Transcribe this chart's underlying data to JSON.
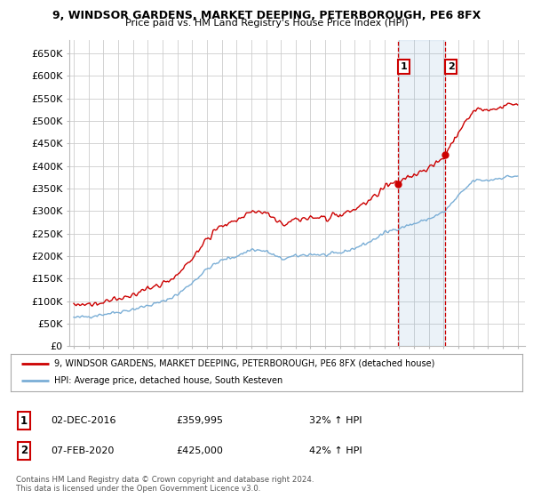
{
  "title_line1": "9, WINDSOR GARDENS, MARKET DEEPING, PETERBOROUGH, PE6 8FX",
  "title_line2": "Price paid vs. HM Land Registry's House Price Index (HPI)",
  "ylabel_ticks": [
    "£0",
    "£50K",
    "£100K",
    "£150K",
    "£200K",
    "£250K",
    "£300K",
    "£350K",
    "£400K",
    "£450K",
    "£500K",
    "£550K",
    "£600K",
    "£650K"
  ],
  "ytick_vals": [
    0,
    50000,
    100000,
    150000,
    200000,
    250000,
    300000,
    350000,
    400000,
    450000,
    500000,
    550000,
    600000,
    650000
  ],
  "ylim": [
    0,
    680000
  ],
  "xlim_start": 1994.7,
  "xlim_end": 2025.5,
  "legend_line1": "9, WINDSOR GARDENS, MARKET DEEPING, PETERBOROUGH, PE6 8FX (detached house)",
  "legend_line2": "HPI: Average price, detached house, South Kesteven",
  "sale1_date": "02-DEC-2016",
  "sale1_price": "£359,995",
  "sale1_pct": "32% ↑ HPI",
  "sale2_date": "07-FEB-2020",
  "sale2_price": "£425,000",
  "sale2_pct": "42% ↑ HPI",
  "footnote1": "Contains HM Land Registry data © Crown copyright and database right 2024.",
  "footnote2": "This data is licensed under the Open Government Licence v3.0.",
  "red_color": "#cc0000",
  "blue_color": "#7aaed6",
  "sale1_x": 2016.92,
  "sale2_x": 2020.09,
  "vline1_x": 2016.92,
  "vline2_x": 2020.09,
  "background_color": "#ffffff",
  "grid_color": "#cccccc"
}
